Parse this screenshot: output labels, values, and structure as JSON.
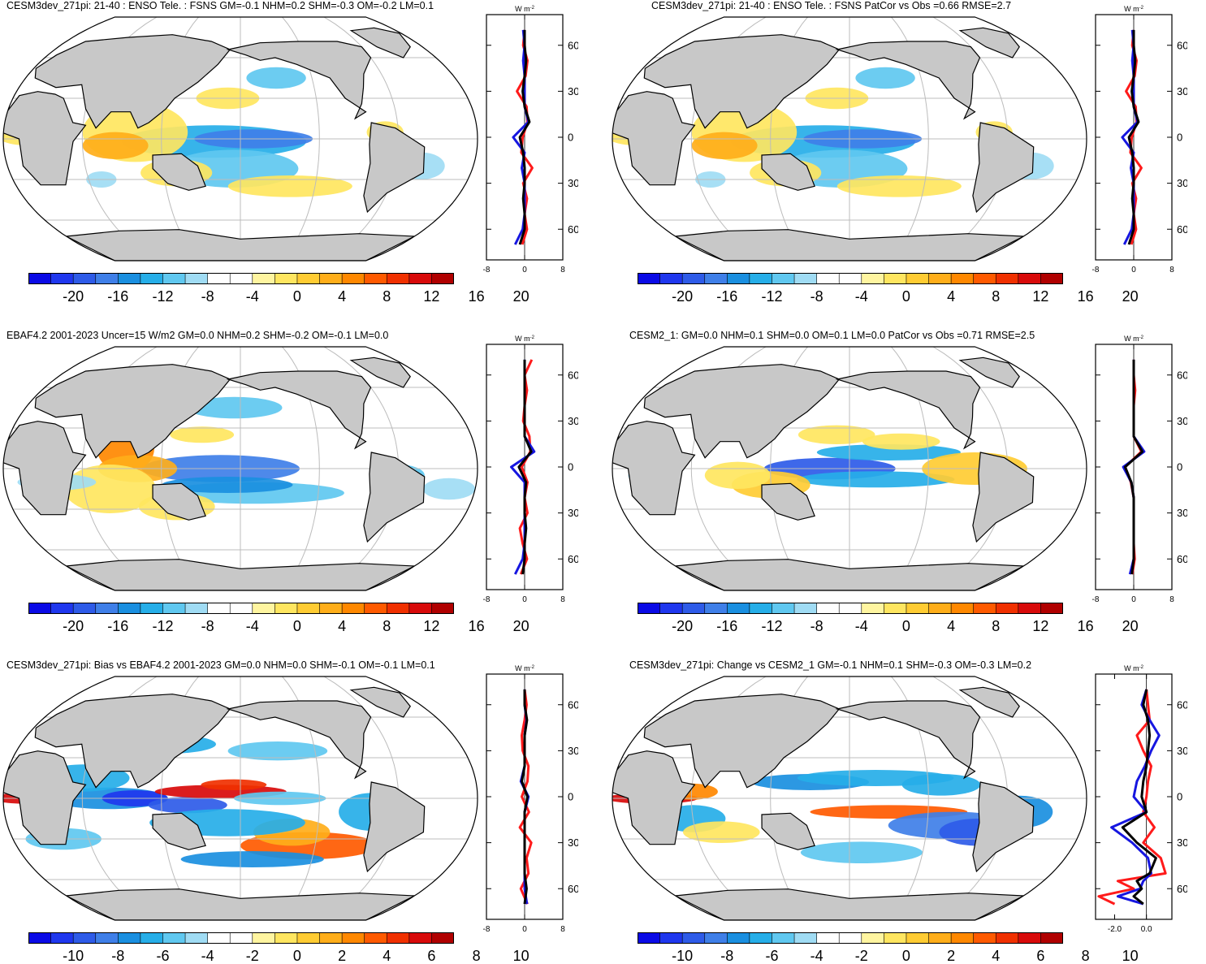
{
  "colors": {
    "land": "#c8c8c8",
    "coast": "#000000",
    "grid": "#bcbcbc",
    "line_black": "#000000",
    "line_red": "#ff1a1a",
    "line_blue": "#1616e0",
    "palette": [
      "#0a0ae6",
      "#1f37ee",
      "#2e5be8",
      "#3f7fe8",
      "#1a8fe0",
      "#26aee8",
      "#60c8f0",
      "#a0dcf4",
      "#ffffff",
      "#ffffff",
      "#fff5a0",
      "#ffe660",
      "#ffcc33",
      "#ffae1a",
      "#ff8800",
      "#ff5a00",
      "#f03000",
      "#d80a0a",
      "#b00000"
    ]
  },
  "panels": [
    {
      "title": "CESM3dev_271pi: 21-40 : ENSO Tele. : FSNS GM=-0.1 NHM=0.2 SHM=-0.3 OM=-0.2 LM=0.1",
      "zonal_unit": "W m-2",
      "zonal_unit_base": "W m",
      "zonal_unit_exp": "-2",
      "zonal_ticks": [
        "-8",
        "0",
        "8"
      ],
      "lat_labels": [
        "60N",
        "30N",
        "0",
        "30S",
        "60S"
      ],
      "colorbar_labels": [
        "-20",
        "-16",
        "-12",
        "-8",
        "-4",
        "0",
        "4",
        "8",
        "12",
        "16",
        "20"
      ]
    },
    {
      "title": "CESM3dev_271pi: 21-40 : ENSO Tele. : FSNS PatCor vs Obs =0.66 RMSE=2.7",
      "zonal_unit": "W m-2",
      "zonal_unit_base": "W m",
      "zonal_unit_exp": "-2",
      "zonal_ticks": [
        "-8",
        "0",
        "8"
      ],
      "lat_labels": [
        "60N",
        "30N",
        "0",
        "30S",
        "60S"
      ],
      "colorbar_labels": [
        "-20",
        "-16",
        "-12",
        "-8",
        "-4",
        "0",
        "4",
        "8",
        "12",
        "16",
        "20"
      ]
    },
    {
      "title": "EBAF4.2 2001-2023 Uncer=15 W/m2 GM=0.0 NHM=0.2 SHM=-0.2 OM=-0.1 LM=0.0",
      "zonal_unit": "W m-2",
      "zonal_unit_base": "W m",
      "zonal_unit_exp": "-2",
      "zonal_ticks": [
        "-8",
        "0",
        "8"
      ],
      "lat_labels": [
        "60N",
        "30N",
        "0",
        "30S",
        "60S"
      ],
      "colorbar_labels": [
        "-20",
        "-16",
        "-12",
        "-8",
        "-4",
        "0",
        "4",
        "8",
        "12",
        "16",
        "20"
      ]
    },
    {
      "title": "CESM2_1: GM=0.0 NHM=0.1 SHM=0.0 OM=0.1 LM=0.0 PatCor vs Obs =0.71 RMSE=2.5",
      "zonal_unit": "W m-2",
      "zonal_unit_base": "W m",
      "zonal_unit_exp": "-2",
      "zonal_ticks": [
        "-8",
        "0",
        "8"
      ],
      "lat_labels": [
        "60N",
        "30N",
        "0",
        "30S",
        "60S"
      ],
      "colorbar_labels": [
        "-20",
        "-16",
        "-12",
        "-8",
        "-4",
        "0",
        "4",
        "8",
        "12",
        "16",
        "20"
      ]
    },
    {
      "title": "CESM3dev_271pi: Bias vs EBAF4.2 2001-2023 GM=0.0 NHM=0.0 SHM=-0.1 OM=-0.1 LM=0.1",
      "zonal_unit": "W m-2",
      "zonal_unit_base": "W m",
      "zonal_unit_exp": "-2",
      "zonal_ticks": [
        "-8",
        "0",
        "8"
      ],
      "lat_labels": [
        "60N",
        "30N",
        "0",
        "30S",
        "60S"
      ],
      "colorbar_labels": [
        "-10",
        "-8",
        "-6",
        "-4",
        "-2",
        "0",
        "2",
        "4",
        "6",
        "8",
        "10"
      ]
    },
    {
      "title": "CESM3dev_271pi: Change vs CESM2_1 GM=-0.1 NHM=0.1 SHM=-0.3 OM=-0.3 LM=0.2",
      "zonal_unit": "W m-2",
      "zonal_unit_base": "W m",
      "zonal_unit_exp": "-2",
      "zonal_ticks": [
        "-2.0",
        "0.0"
      ],
      "lat_labels": [
        "60N",
        "30N",
        "0",
        "30S",
        "60S"
      ],
      "colorbar_labels": [
        "-10",
        "-8",
        "-6",
        "-4",
        "-2",
        "0",
        "2",
        "4",
        "6",
        "8",
        "10"
      ]
    }
  ],
  "chart_data": [
    {
      "type": "heatmap",
      "title": "CESM3dev_271pi: 21-40 : ENSO Tele. : FSNS GM=-0.1 NHM=0.2 SHM=-0.3 OM=-0.2 LM=0.1",
      "variable": "FSNS",
      "units": "W m-2",
      "color_levels": [
        -20,
        20
      ],
      "stats": {
        "GM": -0.1,
        "NHM": 0.2,
        "SHM": -0.3,
        "OM": -0.2,
        "LM": 0.1
      },
      "zonal_mean": {
        "xlim": [
          -8,
          8
        ],
        "ylim": [
          -75,
          75
        ],
        "ticks": [
          -8,
          0,
          8
        ],
        "lat": [
          -70,
          -60,
          -50,
          -40,
          -30,
          -20,
          -10,
          0,
          10,
          20,
          30,
          40,
          50,
          60,
          70
        ],
        "black": [
          -1,
          0,
          0,
          -0.3,
          0,
          0,
          -0.3,
          -1,
          1,
          0,
          -0.4,
          0,
          0.3,
          0,
          0
        ],
        "red": [
          -0.5,
          0.5,
          0,
          0.5,
          -0.3,
          1.6,
          -0.7,
          -0.4,
          0.6,
          0.4,
          -1.6,
          0.2,
          0.6,
          -0.3,
          0
        ],
        "blue": [
          -2,
          -0.4,
          0,
          0,
          0,
          -0.6,
          0,
          -2.4,
          0.8,
          0,
          0,
          0,
          -0.3,
          0,
          -0.3
        ]
      }
    },
    {
      "type": "heatmap",
      "title": "CESM3dev_271pi: 21-40 : ENSO Tele. : FSNS PatCor vs Obs =0.66 RMSE=2.7",
      "variable": "FSNS",
      "units": "W m-2",
      "color_levels": [
        -20,
        20
      ],
      "stats": {
        "PatCor vs Obs": 0.66,
        "RMSE": 2.7
      },
      "zonal_mean": {
        "xlim": [
          -8,
          8
        ],
        "ylim": [
          -75,
          75
        ],
        "ticks": [
          -8,
          0,
          8
        ],
        "lat": [
          -70,
          -60,
          -50,
          -40,
          -30,
          -20,
          -10,
          0,
          10,
          20,
          30,
          40,
          50,
          60,
          70
        ],
        "black": [
          -1,
          0,
          0,
          -0.3,
          0,
          0,
          -0.3,
          -1,
          1,
          0,
          -0.4,
          0,
          0.3,
          0,
          0
        ],
        "red": [
          -0.5,
          0.5,
          0,
          0.5,
          -0.3,
          1.6,
          -0.7,
          -0.4,
          0.6,
          0.4,
          -1.6,
          0.2,
          0.6,
          -0.3,
          0
        ],
        "blue": [
          -2,
          -0.4,
          0,
          0,
          0,
          -0.6,
          0,
          -2.4,
          0.8,
          0,
          0,
          0,
          -0.3,
          0,
          -0.3
        ]
      }
    },
    {
      "type": "heatmap",
      "title": "EBAF4.2 2001-2023 Uncer=15 W/m2 GM=0.0 NHM=0.2 SHM=-0.2 OM=-0.1 LM=0.0",
      "variable": "FSNS",
      "units": "W m-2",
      "color_levels": [
        -20,
        20
      ],
      "stats": {
        "GM": 0.0,
        "NHM": 0.2,
        "SHM": -0.2,
        "OM": -0.1,
        "LM": 0.0
      },
      "zonal_mean": {
        "xlim": [
          -8,
          8
        ],
        "ylim": [
          -75,
          75
        ],
        "ticks": [
          -8,
          0,
          8
        ],
        "lat": [
          -70,
          -60,
          -50,
          -40,
          -30,
          -20,
          -10,
          0,
          10,
          20,
          30,
          40,
          50,
          60,
          70
        ],
        "black": [
          -0.4,
          0,
          0,
          0.3,
          0,
          0,
          0.3,
          -1.2,
          1.4,
          0,
          0,
          0,
          0,
          0,
          0
        ],
        "red": [
          -0.8,
          0.5,
          -0.4,
          -1,
          0.6,
          0,
          0.6,
          -0.6,
          1.2,
          1,
          -0.3,
          0,
          0.5,
          0,
          1.5
        ],
        "blue": [
          -2,
          -0.4,
          0,
          0,
          0,
          0,
          0,
          -2.8,
          2,
          0,
          0,
          0,
          0,
          0,
          0
        ]
      }
    },
    {
      "type": "heatmap",
      "title": "CESM2_1: GM=0.0 NHM=0.1 SHM=0.0 OM=0.1 LM=0.0 PatCor vs Obs =0.71 RMSE=2.5",
      "variable": "FSNS",
      "units": "W m-2",
      "color_levels": [
        -20,
        20
      ],
      "stats": {
        "GM": 0.0,
        "NHM": 0.1,
        "SHM": 0.0,
        "OM": 0.1,
        "LM": 0.0,
        "PatCor vs Obs": 0.71,
        "RMSE": 2.5
      },
      "zonal_mean": {
        "xlim": [
          -8,
          8
        ],
        "ylim": [
          -75,
          75
        ],
        "ticks": [
          -8,
          0,
          8
        ],
        "lat": [
          -70,
          -60,
          -50,
          -40,
          -30,
          -20,
          -10,
          0,
          10,
          20,
          30,
          40,
          50,
          60,
          70
        ],
        "black": [
          -0.4,
          0,
          0,
          0,
          0,
          0,
          -0.5,
          -1.8,
          1.8,
          0,
          0,
          0,
          0,
          0,
          0
        ],
        "red": [
          -0.3,
          0.2,
          0,
          0,
          0,
          0,
          -0.6,
          -1.8,
          1.6,
          0,
          0,
          0,
          0.3,
          0,
          0
        ],
        "blue": [
          -0.8,
          0,
          0,
          0,
          0,
          0,
          -0.5,
          -2.2,
          2.2,
          0,
          0,
          0,
          0,
          0,
          0
        ]
      }
    },
    {
      "type": "heatmap",
      "title": "CESM3dev_271pi: Bias vs EBAF4.2 2001-2023 GM=0.0 NHM=0.0 SHM=-0.1 OM=-0.1 LM=0.1",
      "variable": "FSNS",
      "units": "W m-2",
      "color_levels": [
        -10,
        10
      ],
      "stats": {
        "GM": 0.0,
        "NHM": 0.0,
        "SHM": -0.1,
        "OM": -0.1,
        "LM": 0.1
      },
      "zonal_mean": {
        "xlim": [
          -8,
          8
        ],
        "ylim": [
          -75,
          75
        ],
        "ticks": [
          -8,
          0,
          8
        ],
        "lat": [
          -70,
          -60,
          -50,
          -40,
          -30,
          -20,
          -10,
          0,
          10,
          20,
          30,
          40,
          50,
          60,
          70
        ],
        "black": [
          0,
          0.4,
          0,
          0,
          0,
          0,
          0,
          0.6,
          -0.6,
          0,
          0,
          0,
          0.5,
          0,
          0
        ],
        "red": [
          0.6,
          -0.8,
          0.8,
          0.4,
          1.4,
          -1,
          0.9,
          -0.6,
          0.6,
          0.8,
          -0.4,
          -0.6,
          0,
          0.4,
          0
        ],
        "blue": [
          0.5,
          0,
          0,
          0,
          0,
          0,
          0,
          0.8,
          -0.8,
          0,
          0,
          0,
          0.4,
          0,
          0
        ]
      }
    },
    {
      "type": "heatmap",
      "title": "CESM3dev_271pi: Change vs CESM2_1 GM=-0.1 NHM=0.1 SHM=-0.3 OM=-0.3 LM=0.2",
      "variable": "FSNS",
      "units": "W m-2",
      "color_levels": [
        -10,
        10
      ],
      "stats": {
        "GM": -0.1,
        "NHM": 0.1,
        "SHM": -0.3,
        "OM": -0.3,
        "LM": 0.2
      },
      "zonal_mean": {
        "xlim": [
          -3.2,
          1.6
        ],
        "ylim": [
          -75,
          75
        ],
        "ticks": [
          -2.0,
          0.0
        ],
        "lat": [
          -70,
          -65,
          -60,
          -55,
          -50,
          -40,
          -30,
          -20,
          -10,
          0,
          10,
          20,
          30,
          40,
          50,
          60,
          70
        ],
        "black": [
          -0.2,
          -0.8,
          -0.3,
          -0.6,
          0.2,
          0.6,
          -0.6,
          -1.5,
          0,
          -0.3,
          -0.2,
          0,
          0.1,
          0.2,
          0.1,
          -0.2,
          0
        ],
        "red": [
          -2,
          -3,
          -0.8,
          -1.8,
          1.2,
          0.9,
          -0.2,
          0.5,
          -0.2,
          0,
          0.1,
          0.3,
          -0.2,
          -0.6,
          0.2,
          0.1,
          0
        ],
        "blue": [
          -0.2,
          -1.8,
          -0.4,
          -0.2,
          0.3,
          0.1,
          -0.9,
          -2.2,
          0,
          -0.8,
          -0.6,
          -0.1,
          0.3,
          0.8,
          0.2,
          -0.3,
          0
        ]
      }
    }
  ]
}
